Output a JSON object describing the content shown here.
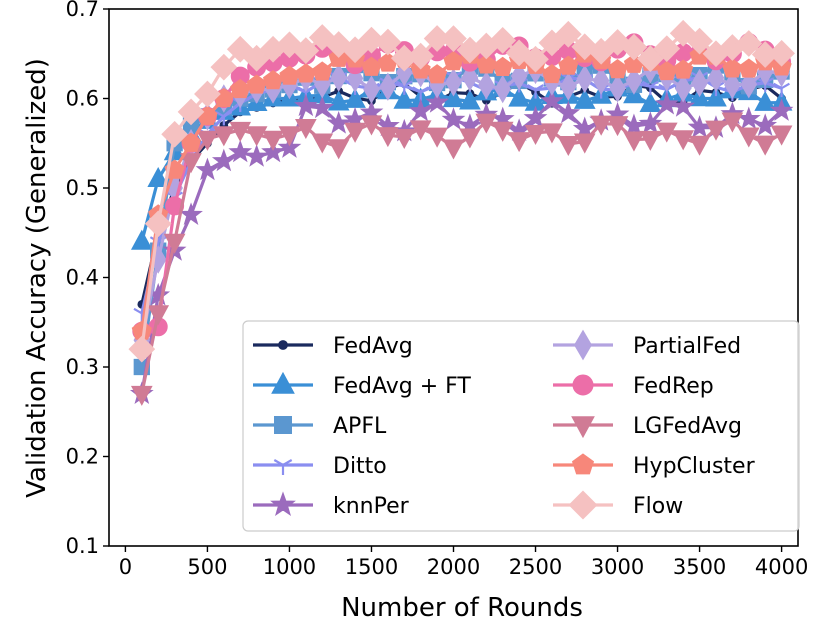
{
  "chart_data": {
    "type": "line",
    "title": "",
    "xlabel": "Number of Rounds",
    "ylabel": "Validation Accuracy (Generalized)",
    "xlim": [
      -100,
      4100
    ],
    "ylim": [
      0.1,
      0.7
    ],
    "xticks": [
      0,
      500,
      1000,
      1500,
      2000,
      2500,
      3000,
      3500,
      4000
    ],
    "yticks": [
      0.1,
      0.2,
      0.3,
      0.4,
      0.5,
      0.6,
      0.7
    ],
    "grid": false,
    "legend_position": "lower-right",
    "legend_columns": 2,
    "series": [
      {
        "name": "FedAvg",
        "color": "#1a2a5e",
        "marker": "circle-small",
        "start": [
          0.37,
          0.45,
          0.5,
          0.53,
          0.55,
          0.57,
          0.585,
          0.59,
          0.595,
          0.6
        ],
        "plateau": 0.605,
        "amp": 0.008
      },
      {
        "name": "FedAvg + FT",
        "color": "#3a8fd6",
        "marker": "triangle-up",
        "start": [
          0.44,
          0.51,
          0.54,
          0.56,
          0.575,
          0.585,
          0.59,
          0.595,
          0.6,
          0.6
        ],
        "plateau": 0.602,
        "amp": 0.006
      },
      {
        "name": "APFL",
        "color": "#5b97d0",
        "marker": "square",
        "start": [
          0.3,
          0.43,
          0.55,
          0.57,
          0.58,
          0.59,
          0.6,
          0.605,
          0.61,
          0.615
        ],
        "plateau": 0.625,
        "amp": 0.008
      },
      {
        "name": "Ditto",
        "color": "#8a8ef0",
        "marker": "tri-down",
        "start": [
          0.36,
          0.44,
          0.49,
          0.53,
          0.56,
          0.58,
          0.595,
          0.605,
          0.61,
          0.615
        ],
        "plateau": 0.615,
        "amp": 0.006
      },
      {
        "name": "knnPer",
        "color": "#9b6bbd",
        "marker": "star",
        "start": [
          0.27,
          0.38,
          0.43,
          0.47,
          0.52,
          0.53,
          0.54,
          0.535,
          0.54,
          0.545
        ],
        "plateau": 0.578,
        "amp": 0.012
      },
      {
        "name": "PartialFed",
        "color": "#b3a3e0",
        "marker": "thin-diamond",
        "start": [
          0.33,
          0.42,
          0.5,
          0.55,
          0.58,
          0.6,
          0.605,
          0.61,
          0.61,
          0.615
        ],
        "plateau": 0.62,
        "amp": 0.008
      },
      {
        "name": "FedRep",
        "color": "#ec6ea8",
        "marker": "circle",
        "start": [
          0.34,
          0.345,
          0.48,
          0.55,
          0.58,
          0.6,
          0.625,
          0.635,
          0.64,
          0.645
        ],
        "plateau": 0.65,
        "amp": 0.008
      },
      {
        "name": "LGFedAvg",
        "color": "#d07b95",
        "marker": "triangle-down",
        "start": [
          0.27,
          0.36,
          0.44,
          0.53,
          0.555,
          0.56,
          0.565,
          0.56,
          0.555,
          0.56
        ],
        "plateau": 0.56,
        "amp": 0.01
      },
      {
        "name": "HypCluster",
        "color": "#f7877a",
        "marker": "pentagon",
        "start": [
          0.34,
          0.47,
          0.52,
          0.55,
          0.58,
          0.6,
          0.61,
          0.615,
          0.62,
          0.625
        ],
        "plateau": 0.638,
        "amp": 0.008
      },
      {
        "name": "Flow",
        "color": "#f5c1c1",
        "marker": "diamond",
        "start": [
          0.32,
          0.46,
          0.56,
          0.585,
          0.605,
          0.635,
          0.655,
          0.645,
          0.655,
          0.66
        ],
        "plateau": 0.658,
        "amp": 0.01
      }
    ]
  }
}
